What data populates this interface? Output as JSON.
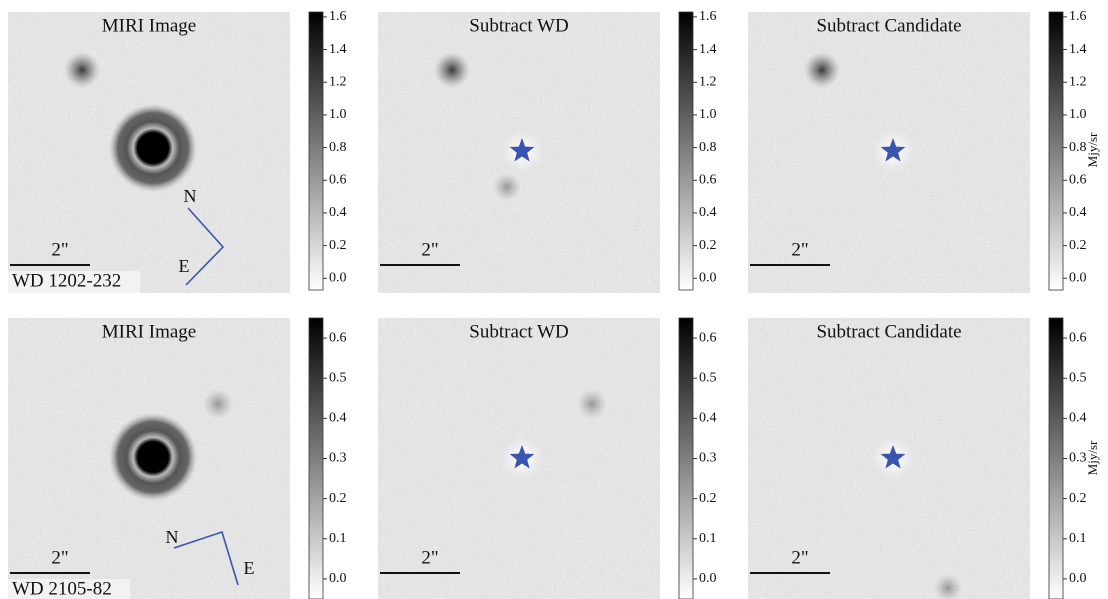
{
  "rows": [
    {
      "target": "WD 1202-232",
      "compass": {
        "north": "N",
        "east": "E"
      },
      "unit": "Mjy/sr",
      "colorbar": {
        "lim": [
          -0.09,
          1.63
        ],
        "ticks": [
          {
            "value": 0,
            "label": "0.0"
          },
          0.2,
          0.4,
          0.6,
          0.8,
          {
            "value": 1,
            "label": "1.0"
          },
          1.2,
          1.4,
          1.6
        ]
      },
      "panels": [
        {
          "title": "MIRI Image",
          "scale_label": "2\""
        },
        {
          "title": "Subtract WD",
          "scale_label": "2\""
        },
        {
          "title": "Subtract Candidate",
          "scale_label": "2\""
        }
      ]
    },
    {
      "target": "WD 2105-82",
      "compass": {
        "north": "N",
        "east": "E"
      },
      "unit": "Mjy/sr",
      "colorbar": {
        "lim": [
          -0.05,
          0.65
        ],
        "ticks": [
          {
            "value": 0,
            "label": "0.0"
          },
          0.1,
          0.2,
          0.3,
          0.4,
          0.5,
          0.6
        ]
      },
      "panels": [
        {
          "title": "MIRI Image",
          "scale_label": "2\""
        },
        {
          "title": "Subtract WD",
          "scale_label": "2\""
        },
        {
          "title": "Subtract Candidate",
          "scale_label": "2\""
        }
      ]
    }
  ]
}
